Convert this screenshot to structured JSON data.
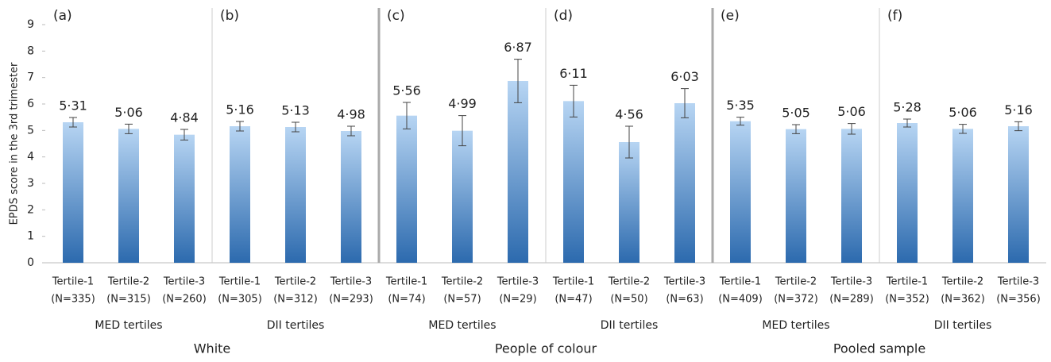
{
  "chart_data": {
    "type": "bar",
    "ylabel": "EPDS score in the 3rd trimester",
    "ylim": [
      0,
      9
    ],
    "yticks": [
      0,
      1,
      2,
      3,
      4,
      5,
      6,
      7,
      8,
      9
    ],
    "color": "#5b9bd5",
    "gradient": [
      "#b7d5f3",
      "#2c6aae"
    ],
    "error_color": "#444444",
    "populations": [
      "White",
      "People of colour",
      "Pooled sample"
    ],
    "panels": [
      {
        "label": "(a)",
        "group": "MED tertiles",
        "categories": [
          "Tertile-1",
          "Tertile-2",
          "Tertile-3"
        ],
        "sample_sizes": [
          "(N=335)",
          "(N=315)",
          "(N=260)"
        ],
        "values": [
          5.31,
          5.06,
          4.84
        ],
        "value_labels": [
          "5·31",
          "5·06",
          "4·84"
        ],
        "errors": [
          0.18,
          0.18,
          0.2
        ]
      },
      {
        "label": "(b)",
        "group": "DII tertiles",
        "categories": [
          "Tertile-1",
          "Tertile-2",
          "Tertile-3"
        ],
        "sample_sizes": [
          "(N=305)",
          "(N=312)",
          "(N=293)"
        ],
        "values": [
          5.16,
          5.13,
          4.98
        ],
        "value_labels": [
          "5·16",
          "5·13",
          "4·98"
        ],
        "errors": [
          0.18,
          0.18,
          0.18
        ]
      },
      {
        "label": "(c)",
        "group": "MED tertiles",
        "categories": [
          "Tertile-1",
          "Tertile-2",
          "Tertile-3"
        ],
        "sample_sizes": [
          "(N=74)",
          "(N=57)",
          "(N=29)"
        ],
        "values": [
          5.56,
          4.99,
          6.87
        ],
        "value_labels": [
          "5·56",
          "4·99",
          "6·87"
        ],
        "errors": [
          0.5,
          0.57,
          0.82
        ]
      },
      {
        "label": "(d)",
        "group": "DII tertiles",
        "categories": [
          "Tertile-1",
          "Tertile-2",
          "Tertile-3"
        ],
        "sample_sizes": [
          "(N=47)",
          "(N=50)",
          "(N=63)"
        ],
        "values": [
          6.11,
          4.56,
          6.03
        ],
        "value_labels": [
          "6·11",
          "4·56",
          "6·03"
        ],
        "errors": [
          0.6,
          0.6,
          0.55
        ]
      },
      {
        "label": "(e)",
        "group": "MED tertiles",
        "categories": [
          "Tertile-1",
          "Tertile-2",
          "Tertile-3"
        ],
        "sample_sizes": [
          "(N=409)",
          "(N=372)",
          "(N=289)"
        ],
        "values": [
          5.35,
          5.05,
          5.06
        ],
        "value_labels": [
          "5·35",
          "5·05",
          "5·06"
        ],
        "errors": [
          0.15,
          0.17,
          0.2
        ]
      },
      {
        "label": "(f)",
        "group": "DII tertiles",
        "categories": [
          "Tertile-1",
          "Tertile-2",
          "Tertile-3"
        ],
        "sample_sizes": [
          "(N=352)",
          "(N=362)",
          "(N=356)"
        ],
        "values": [
          5.28,
          5.06,
          5.16
        ],
        "value_labels": [
          "5·28",
          "5·06",
          "5·16"
        ],
        "errors": [
          0.15,
          0.17,
          0.17
        ]
      }
    ]
  }
}
